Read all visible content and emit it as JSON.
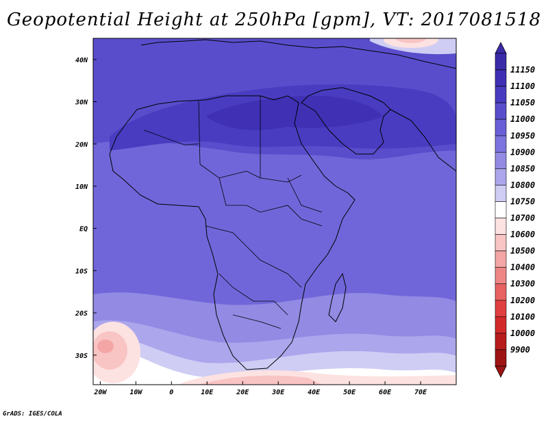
{
  "title": "Geopotential Height at 250hPa [gpm], VT: 2017081518",
  "credit": "GrADS: IGES/COLA",
  "map": {
    "lon_range": [
      -22,
      80
    ],
    "lat_range": [
      -37,
      45
    ],
    "lon_ticks": [
      "20W",
      "10W",
      "0",
      "10E",
      "20E",
      "30E",
      "40E",
      "50E",
      "60E",
      "70E"
    ],
    "lat_ticks": [
      "40N",
      "30N",
      "20N",
      "10N",
      "EQ",
      "10S",
      "20S",
      "30S"
    ]
  },
  "colorbar": {
    "levels": [
      "11150",
      "11100",
      "11050",
      "11000",
      "10950",
      "10900",
      "10850",
      "10800",
      "10750",
      "10700",
      "10600",
      "10500",
      "10400",
      "10300",
      "10200",
      "10100",
      "10000",
      "9900"
    ],
    "colors": [
      "#3a2ba8",
      "#3f30b4",
      "#4a3cc0",
      "#5a4dcc",
      "#6a5fd6",
      "#7d73de",
      "#938ae4",
      "#aca6ec",
      "#cfcdf4",
      "#ffffff",
      "#fde2e2",
      "#f9c4c4",
      "#f4a6a6",
      "#ee8686",
      "#e86262",
      "#e04040",
      "#d22a2a",
      "#b81c1c",
      "#9e1414"
    ]
  }
}
